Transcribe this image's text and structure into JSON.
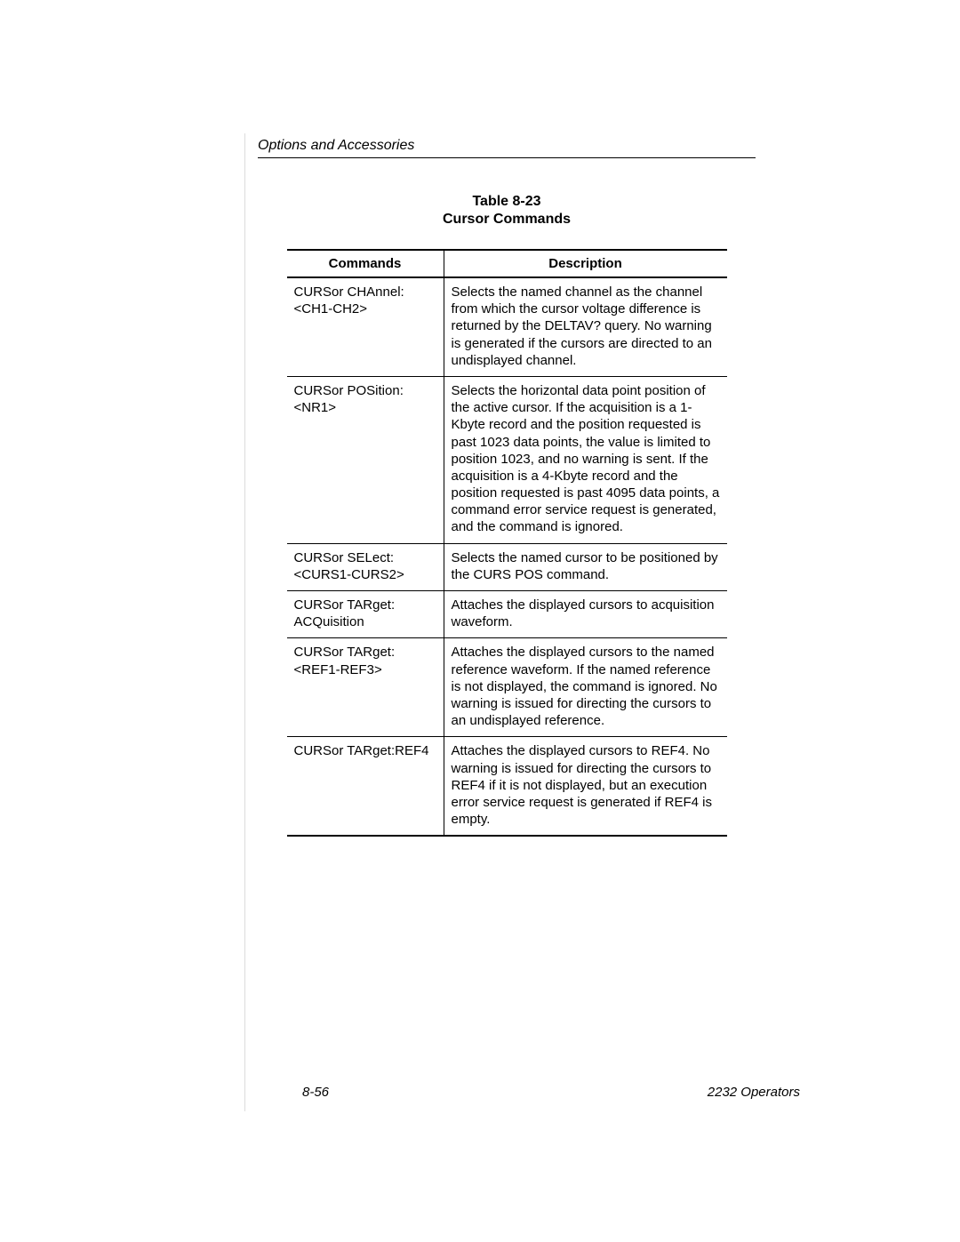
{
  "header": {
    "section": "Options and Accessories"
  },
  "table": {
    "number": "Table 8-23",
    "caption": "Cursor Commands",
    "columns": {
      "commands": "Commands",
      "description": "Description"
    },
    "rows": [
      {
        "command": "CURSor CHAnnel:\n<CH1-CH2>",
        "description": "Selects the named channel as the channel from which the cursor voltage difference is returned by the DELTAV? query. No warning is generated if the cursors are directed to an undisplayed channel."
      },
      {
        "command": "CURSor POSition:\n<NR1>",
        "description": "Selects the horizontal data point position of the active cursor. If the acquisition is a 1-Kbyte record and the position requested is past 1023 data points, the value is limited to position 1023, and no warning is sent. If the acquisition is a 4-Kbyte record and the position requested is past 4095 data points, a command error service request is generated, and the command is ignored."
      },
      {
        "command": "CURSor SELect:\n<CURS1-CURS2>",
        "description": "Selects the named cursor to be positioned by the CURS POS command."
      },
      {
        "command": "CURSor TARget:\nACQuisition",
        "description": "Attaches the displayed cursors to acquisition waveform."
      },
      {
        "command": "CURSor TARget:\n<REF1-REF3>",
        "description": "Attaches the displayed cursors to the named reference waveform. If the named reference is not displayed, the command is ignored. No warning is issued for directing the cursors to an undisplayed reference."
      },
      {
        "command": "CURSor TARget:REF4",
        "description": "Attaches the displayed cursors to REF4. No warning is issued for directing the cursors to REF4 if it is not displayed, but an execution error service request is generated if REF4 is empty."
      }
    ]
  },
  "footer": {
    "page": "8-56",
    "doc": "2232 Operators"
  }
}
